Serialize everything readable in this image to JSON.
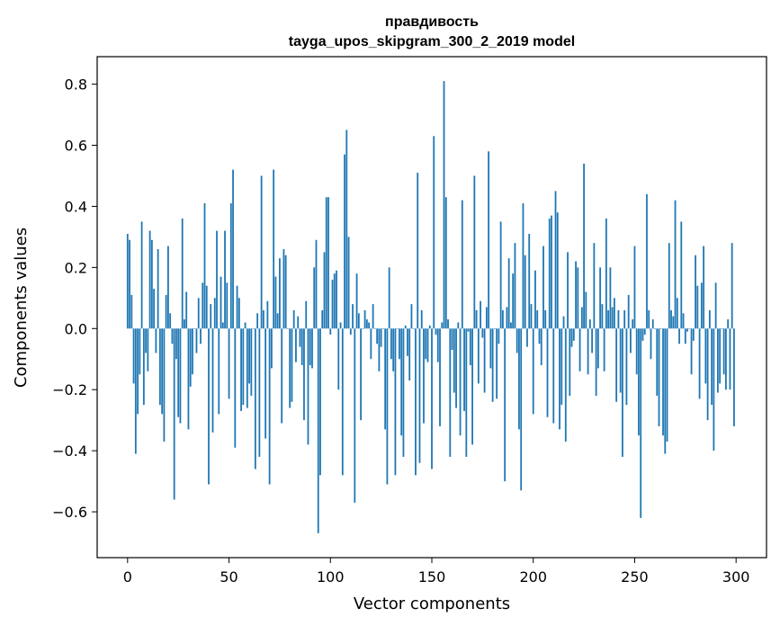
{
  "chart_data": {
    "type": "bar",
    "title_line1": "правдивость",
    "title_line2": "tayga_upos_skipgram_300_2_2019 model",
    "xlabel": "Vector components",
    "ylabel": "Components values",
    "xlim": [
      -15,
      315
    ],
    "ylim": [
      -0.75,
      0.89
    ],
    "x_ticks": [
      0,
      50,
      100,
      150,
      200,
      250,
      300
    ],
    "y_ticks": [
      -0.6,
      -0.4,
      -0.2,
      0.0,
      0.2,
      0.4,
      0.6,
      0.8
    ],
    "x_tick_labels": [
      "0",
      "50",
      "100",
      "150",
      "200",
      "250",
      "300"
    ],
    "y_tick_labels": [
      "−0.6",
      "−0.4",
      "−0.2",
      "0.0",
      "0.2",
      "0.4",
      "0.6",
      "0.8"
    ],
    "bar_color": "#1f77b4",
    "grid": false,
    "values": [
      0.31,
      0.29,
      0.11,
      -0.18,
      -0.41,
      -0.28,
      -0.15,
      0.35,
      -0.25,
      -0.08,
      -0.14,
      0.32,
      0.29,
      0.13,
      -0.08,
      0.26,
      -0.25,
      -0.28,
      -0.37,
      0.11,
      0.27,
      0.05,
      -0.05,
      -0.56,
      -0.1,
      -0.29,
      -0.31,
      0.36,
      0.03,
      0.12,
      -0.33,
      -0.19,
      -0.15,
      0.0,
      -0.08,
      0.1,
      -0.05,
      0.15,
      0.41,
      0.14,
      -0.51,
      0.08,
      -0.34,
      0.1,
      0.32,
      -0.28,
      0.17,
      0.02,
      0.32,
      0.15,
      -0.23,
      0.41,
      0.52,
      -0.39,
      0.14,
      0.1,
      -0.27,
      -0.25,
      0.02,
      -0.26,
      -0.18,
      -0.22,
      0.0,
      -0.46,
      0.05,
      -0.42,
      0.5,
      0.06,
      -0.36,
      0.09,
      -0.51,
      -0.13,
      0.52,
      0.17,
      0.05,
      0.23,
      -0.31,
      0.26,
      0.24,
      0.0,
      -0.26,
      -0.24,
      0.06,
      -0.11,
      0.04,
      -0.06,
      -0.12,
      -0.3,
      0.09,
      -0.38,
      -0.12,
      -0.13,
      0.2,
      0.29,
      -0.67,
      -0.48,
      0.06,
      0.25,
      0.43,
      0.43,
      -0.02,
      0.16,
      0.18,
      0.19,
      -0.2,
      0.02,
      -0.48,
      0.57,
      0.65,
      0.3,
      -0.02,
      0.08,
      -0.57,
      0.18,
      0.05,
      -0.3,
      0.0,
      0.06,
      0.03,
      0.02,
      -0.1,
      0.08,
      0.0,
      -0.05,
      -0.14,
      -0.06,
      0.0,
      -0.33,
      -0.51,
      0.2,
      -0.1,
      -0.14,
      -0.48,
      0.0,
      -0.1,
      -0.35,
      -0.42,
      0.01,
      -0.09,
      -0.17,
      0.08,
      0.0,
      -0.48,
      0.51,
      -0.44,
      0.06,
      -0.31,
      -0.1,
      -0.11,
      0.01,
      -0.46,
      0.63,
      -0.02,
      -0.11,
      -0.32,
      0.02,
      0.81,
      0.43,
      0.03,
      -0.42,
      -0.07,
      -0.21,
      -0.26,
      0.02,
      -0.35,
      0.42,
      -0.27,
      -0.42,
      -0.01,
      -0.12,
      -0.38,
      0.5,
      0.06,
      -0.18,
      0.09,
      -0.03,
      -0.21,
      0.07,
      0.58,
      -0.13,
      -0.24,
      0.0,
      -0.23,
      -0.05,
      0.35,
      0.06,
      -0.5,
      0.07,
      0.23,
      0.02,
      0.18,
      0.28,
      -0.08,
      -0.33,
      -0.53,
      0.41,
      0.24,
      -0.06,
      0.31,
      0.08,
      -0.28,
      0.19,
      0.06,
      -0.05,
      -0.12,
      0.27,
      0.06,
      -0.29,
      0.36,
      0.37,
      -0.31,
      0.45,
      0.38,
      -0.33,
      -0.25,
      0.04,
      -0.37,
      0.25,
      -0.22,
      -0.06,
      -0.04,
      0.22,
      0.2,
      -0.14,
      0.07,
      0.54,
      0.12,
      -0.15,
      0.03,
      -0.08,
      0.28,
      -0.22,
      -0.13,
      0.2,
      0.08,
      -0.14,
      0.36,
      0.06,
      0.2,
      0.07,
      0.1,
      -0.24,
      0.06,
      -0.21,
      -0.42,
      0.06,
      -0.25,
      0.11,
      -0.08,
      0.03,
      0.27,
      -0.15,
      -0.35,
      -0.62,
      -0.04,
      -0.02,
      0.44,
      0.06,
      -0.1,
      0.03,
      0.0,
      -0.22,
      -0.32,
      0.0,
      -0.35,
      -0.41,
      -0.37,
      0.28,
      0.06,
      0.04,
      0.42,
      0.1,
      -0.05,
      0.35,
      0.05,
      -0.05,
      -0.01,
      0.0,
      -0.15,
      -0.04,
      0.24,
      0.14,
      -0.23,
      0.15,
      0.27,
      -0.18,
      -0.3,
      0.06,
      -0.25,
      -0.4,
      0.15,
      -0.21,
      -0.18,
      0.0,
      -0.15,
      -0.2,
      0.03,
      -0.2,
      0.28,
      -0.32
    ]
  }
}
